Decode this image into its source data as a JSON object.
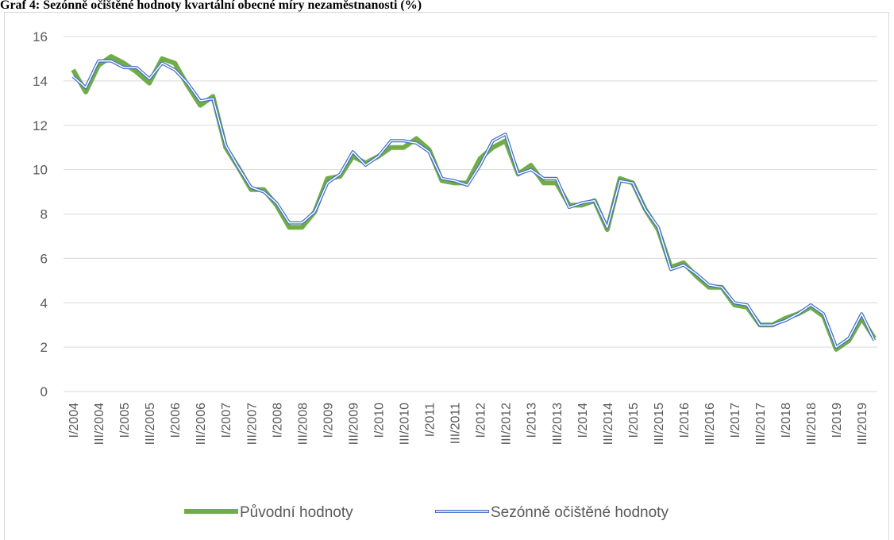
{
  "chart_data": {
    "type": "line",
    "title": "Graf 4: Sezónně očištěné hodnoty kvartální obecné míry nezaměstnanosti (%)",
    "categories": [
      "I/2004",
      null,
      "III/2004",
      null,
      "I/2005",
      null,
      "III/2005",
      null,
      "I/2006",
      null,
      "III/2006",
      null,
      "I/2007",
      null,
      "III/2007",
      null,
      "I/2008",
      null,
      "III/2008",
      null,
      "I/2009",
      null,
      "III/2009",
      null,
      "I/2010",
      null,
      "III/2010",
      null,
      "I/2011",
      null,
      "III/2011",
      null,
      "I/2012",
      null,
      "III/2012",
      null,
      "I/2013",
      null,
      "III/2013",
      null,
      "I/2014",
      null,
      "III/2014",
      null,
      "I/2015",
      null,
      "III/2015",
      null,
      "I/2016",
      null,
      "III/2016",
      null,
      "I/2017",
      null,
      "III/2017",
      null,
      "I/2018",
      null,
      "III/2018",
      null,
      "I/2019",
      null,
      "III/2019",
      null
    ],
    "series": [
      {
        "name": "Původní hodnoty",
        "color": "#70ad47",
        "values": [
          14.5,
          13.5,
          14.7,
          15.1,
          14.8,
          14.4,
          13.9,
          15.0,
          14.8,
          13.8,
          12.9,
          13.3,
          11.0,
          10.1,
          9.1,
          9.1,
          8.4,
          7.4,
          7.4,
          8.1,
          9.6,
          9.7,
          10.6,
          10.3,
          10.6,
          11.0,
          11.0,
          11.4,
          10.9,
          9.5,
          9.4,
          9.4,
          10.5,
          11.0,
          11.3,
          9.8,
          10.2,
          9.4,
          9.4,
          8.4,
          8.4,
          8.6,
          7.3,
          9.6,
          9.4,
          8.2,
          7.3,
          5.6,
          5.8,
          5.2,
          4.7,
          4.7,
          3.9,
          3.8,
          3.0,
          3.0,
          3.3,
          3.5,
          3.8,
          3.4,
          1.9,
          2.3,
          3.3,
          2.4
        ]
      },
      {
        "name": "Sezónně očištěné hodnoty",
        "color": "#4472c4",
        "values": [
          14.2,
          13.7,
          14.9,
          14.9,
          14.6,
          14.6,
          14.1,
          14.8,
          14.5,
          13.9,
          13.1,
          13.2,
          11.1,
          10.1,
          9.2,
          9.0,
          8.5,
          7.6,
          7.6,
          8.1,
          9.4,
          9.8,
          10.8,
          10.2,
          10.6,
          11.3,
          11.3,
          11.2,
          10.8,
          9.6,
          9.5,
          9.3,
          10.2,
          11.3,
          11.6,
          9.8,
          10.0,
          9.6,
          9.6,
          8.3,
          8.5,
          8.6,
          7.4,
          9.5,
          9.4,
          8.2,
          7.4,
          5.5,
          5.7,
          5.3,
          4.8,
          4.7,
          4.0,
          3.9,
          3.0,
          3.0,
          3.2,
          3.5,
          3.9,
          3.5,
          2.0,
          2.4,
          3.5,
          2.3
        ]
      }
    ],
    "ylim": [
      0,
      16
    ],
    "yticks": [
      0,
      2,
      4,
      6,
      8,
      10,
      12,
      14,
      16
    ],
    "grid": true,
    "legend": "bottom"
  }
}
